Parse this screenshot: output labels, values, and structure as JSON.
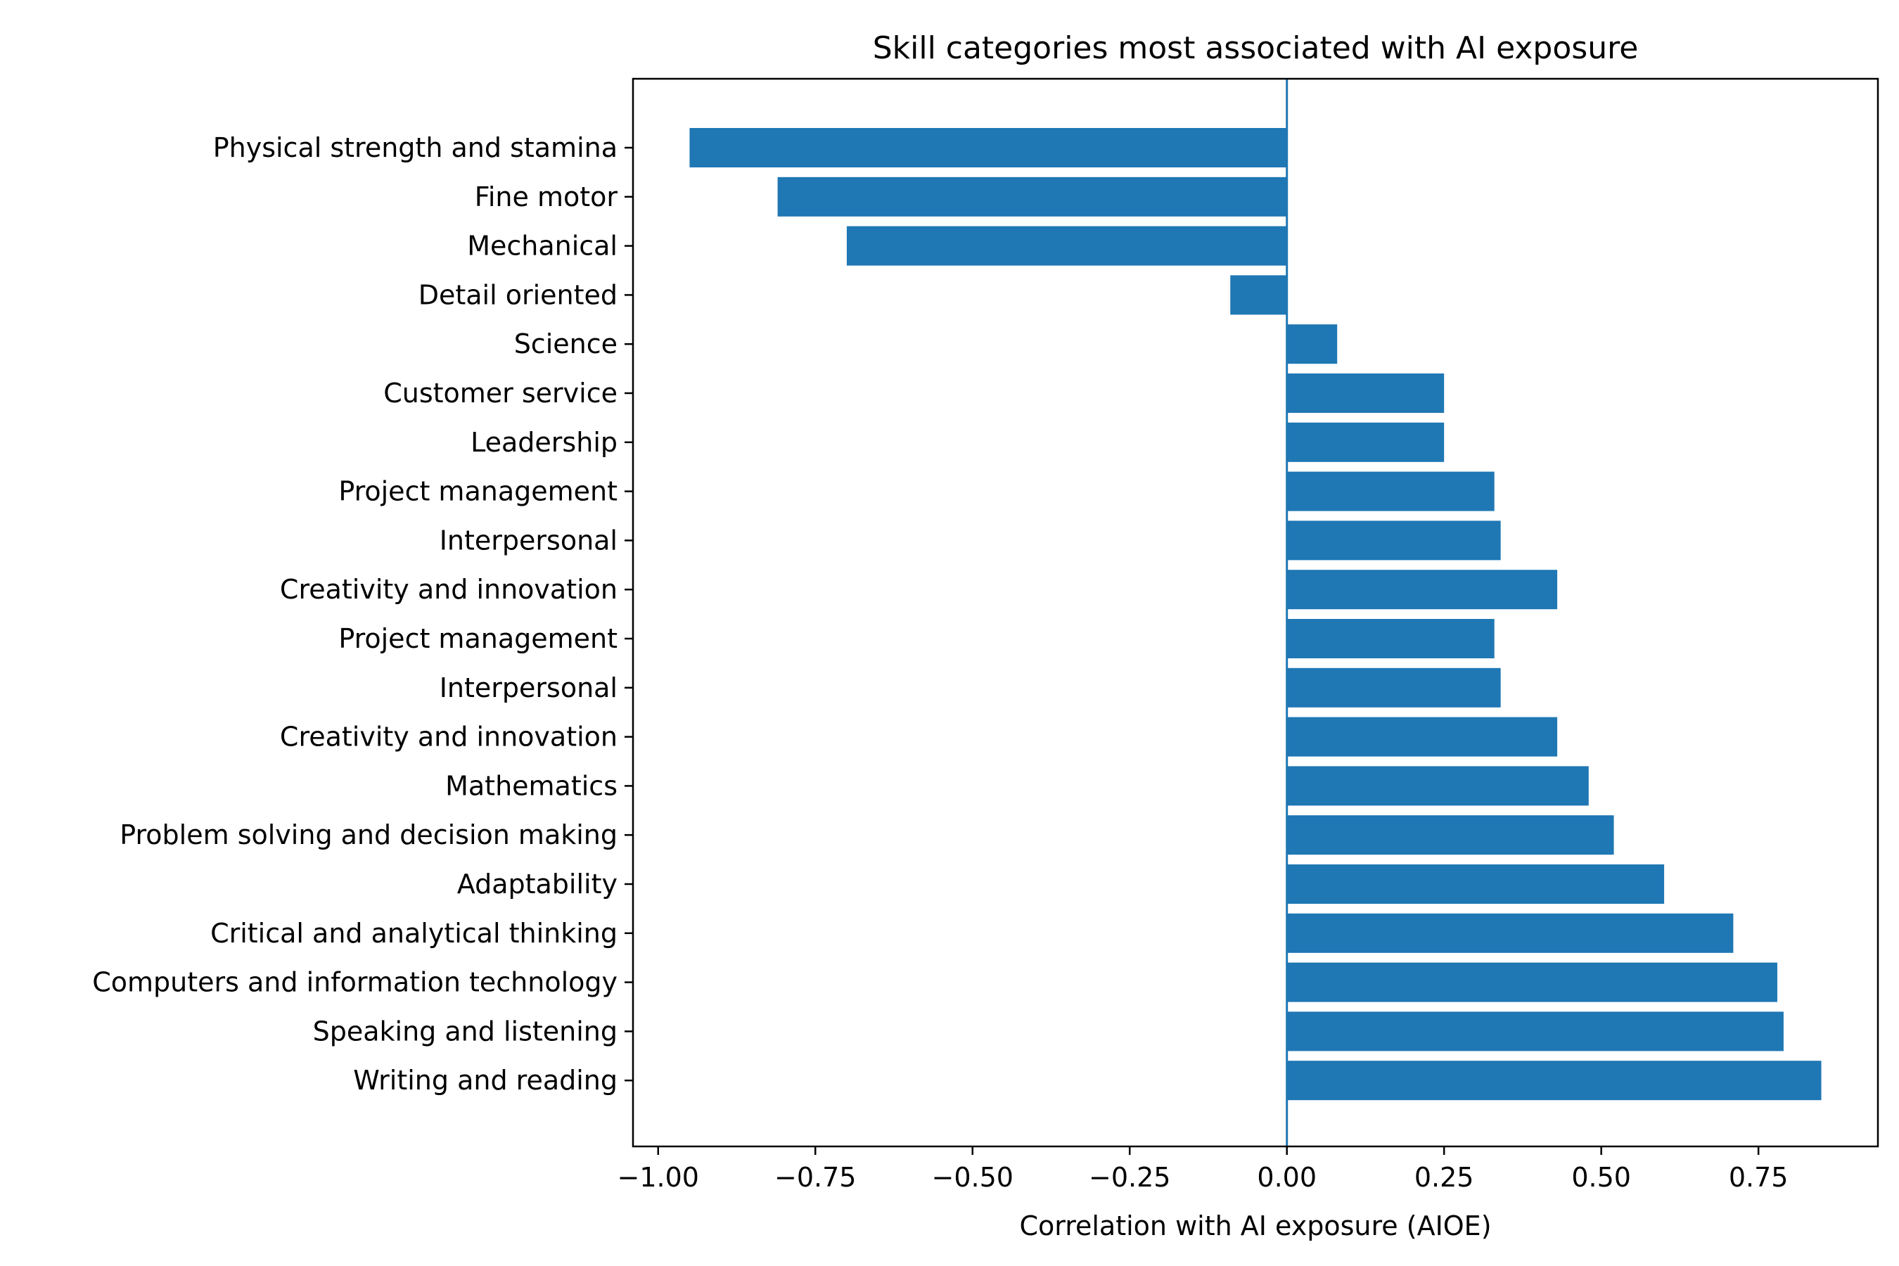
{
  "chart_data": {
    "type": "bar",
    "orientation": "horizontal",
    "title": "Skill categories most associated with AI exposure",
    "xlabel": "Correlation with AI exposure (AIOE)",
    "ylabel": "",
    "xlim": [
      -1.04,
      0.94
    ],
    "xticks": [
      -1.0,
      -0.75,
      -0.5,
      -0.25,
      0.0,
      0.25,
      0.5,
      0.75
    ],
    "xtick_labels": [
      "−1.00",
      "−0.75",
      "−0.50",
      "−0.25",
      "0.00",
      "0.25",
      "0.50",
      "0.75"
    ],
    "reference_line_x": 0,
    "bar_color": "#1f77b4",
    "grid": false,
    "legend": "none",
    "categories": [
      "Physical strength and stamina",
      "Fine motor",
      "Mechanical",
      "Detail oriented",
      "Science",
      "Customer service",
      "Leadership",
      "Project management",
      "Interpersonal",
      "Creativity and innovation",
      "Project management",
      "Interpersonal",
      "Creativity and innovation",
      "Mathematics",
      "Problem solving and decision making",
      "Adaptability",
      "Critical and analytical thinking",
      "Computers and information technology",
      "Speaking and listening",
      "Writing and reading"
    ],
    "values": [
      -0.95,
      -0.81,
      -0.7,
      -0.09,
      0.08,
      0.25,
      0.25,
      0.33,
      0.34,
      0.43,
      0.33,
      0.34,
      0.43,
      0.48,
      0.52,
      0.6,
      0.71,
      0.78,
      0.79,
      0.85
    ]
  }
}
